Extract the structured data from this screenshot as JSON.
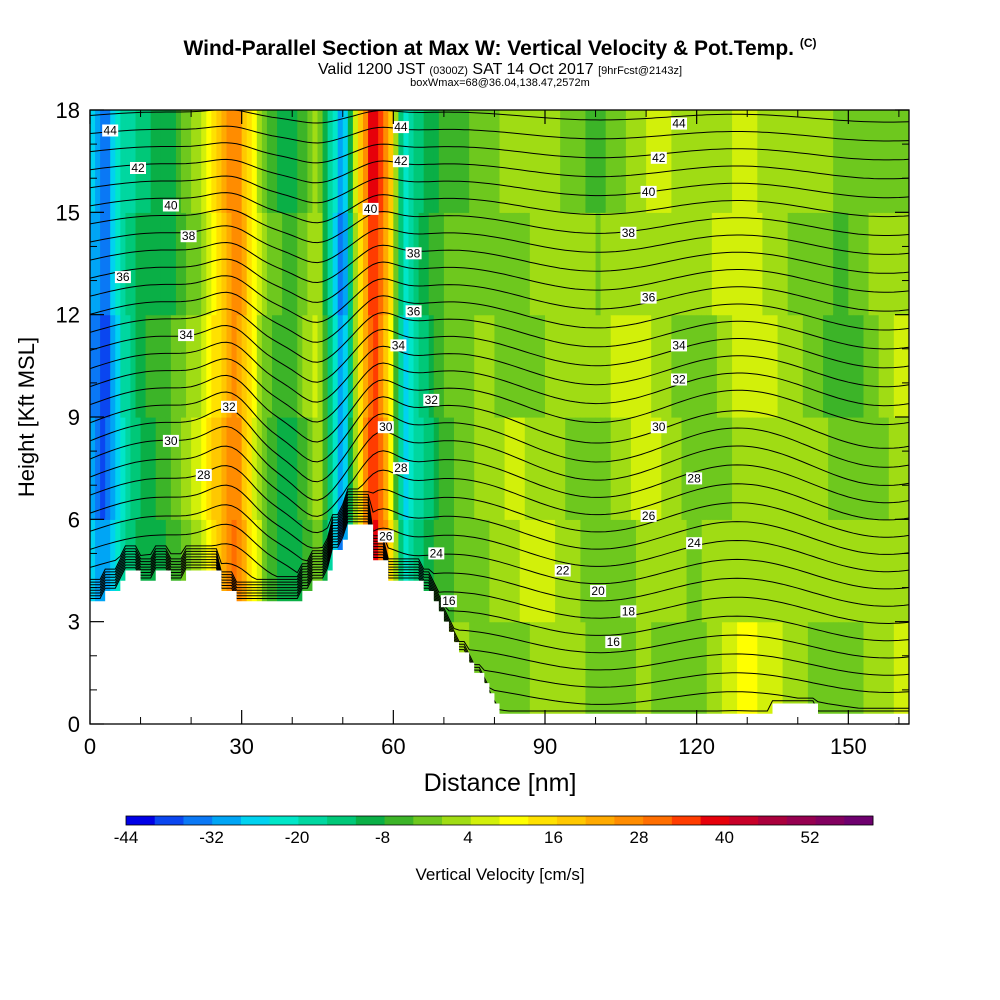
{
  "title": {
    "main": "Wind-Parallel Section at Max W: Vertical Velocity & Pot.Temp.",
    "copyright": "(C)",
    "line2_a": "Valid 1200 JST",
    "line2_b": "(0300Z)",
    "line2_c": "SAT 14 Oct 2017",
    "line2_d": "[9hrFcst@2143z]",
    "line3": "boxWmax=68@36.04,138.47,2572m"
  },
  "chart_data": {
    "type": "heatmap",
    "xlabel": "Distance [nm]",
    "ylabel": "Height [Kft MSL]",
    "xlim": [
      0,
      162
    ],
    "ylim": [
      0,
      18
    ],
    "x_ticks": [
      "0",
      "30",
      "60",
      "90",
      "120",
      "150"
    ],
    "x_tick_values": [
      0,
      30,
      60,
      90,
      120,
      150
    ],
    "y_ticks": [
      "0",
      "3",
      "6",
      "9",
      "12",
      "15",
      "18"
    ],
    "y_tick_values": [
      0,
      3,
      6,
      9,
      12,
      15,
      18
    ],
    "grid": false,
    "colorbar": {
      "label": "Vertical Velocity [cm/s]",
      "tick_labels": [
        "-44",
        "-32",
        "-20",
        "-8",
        "4",
        "16",
        "28",
        "40",
        "52"
      ],
      "colors": [
        "#0000e6",
        "#0a46f0",
        "#0a78f5",
        "#00a5f5",
        "#00d2f0",
        "#00e6c8",
        "#00d7a0",
        "#00c878",
        "#0aaf46",
        "#3cb428",
        "#6ec81e",
        "#a0dc14",
        "#d2f00a",
        "#ffff00",
        "#ffe100",
        "#ffc800",
        "#ffaa00",
        "#ff8c00",
        "#ff6e00",
        "#ff3c00",
        "#e6000a",
        "#c80028",
        "#aa003c",
        "#960050",
        "#82005f",
        "#6e006e"
      ]
    },
    "shading_vertical_velocity": {
      "description_x": [
        0,
        3,
        6,
        10,
        16,
        22,
        26,
        29,
        31,
        35,
        40,
        45,
        48,
        50,
        53,
        56,
        59,
        62,
        66,
        70,
        78,
        90,
        100,
        110,
        120,
        130,
        140,
        150,
        162
      ],
      "w_cm_s": [
        -28,
        -36,
        -20,
        -10,
        -6,
        4,
        18,
        28,
        16,
        -4,
        -10,
        4,
        -20,
        -36,
        10,
        38,
        20,
        -24,
        -12,
        -4,
        0,
        2,
        -2,
        4,
        -2,
        6,
        2,
        -4,
        4
      ]
    },
    "contour_label": "Pot.Temp.",
    "potential_temperature_labels": [
      {
        "label": "44",
        "x": 4,
        "y": 17.4
      },
      {
        "label": "42",
        "x": 9.5,
        "y": 16.3
      },
      {
        "label": "40",
        "x": 16,
        "y": 15.2
      },
      {
        "label": "38",
        "x": 19.5,
        "y": 14.3
      },
      {
        "label": "36",
        "x": 6.5,
        "y": 13.1
      },
      {
        "label": "34",
        "x": 19,
        "y": 11.4
      },
      {
        "label": "32",
        "x": 27.5,
        "y": 9.3
      },
      {
        "label": "30",
        "x": 16,
        "y": 8.3
      },
      {
        "label": "28",
        "x": 22.5,
        "y": 7.3
      },
      {
        "label": "44",
        "x": 61.5,
        "y": 17.5
      },
      {
        "label": "42",
        "x": 61.5,
        "y": 16.5
      },
      {
        "label": "40",
        "x": 55.5,
        "y": 15.1
      },
      {
        "label": "38",
        "x": 64,
        "y": 13.8
      },
      {
        "label": "36",
        "x": 64,
        "y": 12.1
      },
      {
        "label": "34",
        "x": 61,
        "y": 11.1
      },
      {
        "label": "32",
        "x": 67.5,
        "y": 9.5
      },
      {
        "label": "30",
        "x": 58.5,
        "y": 8.7
      },
      {
        "label": "28",
        "x": 61.5,
        "y": 7.5
      },
      {
        "label": "26",
        "x": 58.5,
        "y": 5.5
      },
      {
        "label": "24",
        "x": 68.5,
        "y": 5.0
      },
      {
        "label": "16",
        "x": 71,
        "y": 3.6
      },
      {
        "label": "22",
        "x": 93.5,
        "y": 4.5
      },
      {
        "label": "20",
        "x": 100.5,
        "y": 3.9
      },
      {
        "label": "18",
        "x": 106.5,
        "y": 3.3
      },
      {
        "label": "16",
        "x": 103.5,
        "y": 2.4
      },
      {
        "label": "44",
        "x": 116.5,
        "y": 17.6
      },
      {
        "label": "42",
        "x": 112.5,
        "y": 16.6
      },
      {
        "label": "40",
        "x": 110.5,
        "y": 15.6
      },
      {
        "label": "38",
        "x": 106.5,
        "y": 14.4
      },
      {
        "label": "36",
        "x": 110.5,
        "y": 12.5
      },
      {
        "label": "34",
        "x": 116.5,
        "y": 11.1
      },
      {
        "label": "32",
        "x": 116.5,
        "y": 10.1
      },
      {
        "label": "30",
        "x": 112.5,
        "y": 8.7
      },
      {
        "label": "28",
        "x": 119.5,
        "y": 7.2
      },
      {
        "label": "26",
        "x": 110.5,
        "y": 6.1
      },
      {
        "label": "24",
        "x": 119.5,
        "y": 5.3
      }
    ],
    "terrain_profile": {
      "x": [
        0,
        0,
        3,
        3,
        6,
        6,
        7,
        7,
        10,
        10,
        13,
        13,
        16,
        16,
        19,
        19,
        26,
        26,
        29,
        29,
        32,
        32,
        42,
        42,
        44,
        44,
        47,
        47,
        48,
        48,
        50,
        50,
        51,
        51,
        54,
        54,
        56,
        56,
        59,
        59,
        66,
        66,
        68,
        68,
        69,
        69,
        70,
        70,
        71,
        71,
        72,
        72,
        73,
        73,
        75,
        75,
        76,
        76,
        78,
        78,
        79,
        79,
        80,
        80,
        81,
        81,
        82,
        82,
        83,
        83,
        84,
        84,
        85,
        85,
        88,
        88,
        90,
        90,
        135,
        135,
        144,
        144,
        147,
        147,
        162
      ],
      "y": [
        0,
        3.6,
        3.6,
        3.9,
        3.9,
        4.2,
        4.2,
        4.5,
        4.5,
        4.2,
        4.2,
        4.5,
        4.5,
        4.2,
        4.2,
        4.5,
        4.5,
        3.9,
        3.9,
        3.6,
        3.6,
        3.6,
        3.6,
        3.9,
        3.9,
        4.2,
        4.2,
        4.5,
        4.5,
        5.1,
        5.1,
        5.4,
        5.4,
        5.85,
        5.85,
        5.85,
        5.85,
        4.8,
        4.8,
        4.2,
        4.2,
        3.9,
        3.9,
        3.6,
        3.6,
        3.3,
        3.3,
        3.0,
        3.0,
        2.7,
        2.7,
        2.4,
        2.4,
        2.1,
        2.1,
        1.8,
        1.8,
        1.5,
        1.5,
        1.2,
        1.2,
        0.9,
        0.9,
        0.6,
        0.6,
        0.3,
        0.3,
        0.3,
        0.3,
        0.3,
        0.3,
        0.3,
        0.3,
        0.3,
        0.3,
        0.3,
        0.3,
        0.3,
        0.3,
        0.6,
        0.6,
        0.3,
        0.3,
        0.3,
        0.3
      ]
    }
  }
}
